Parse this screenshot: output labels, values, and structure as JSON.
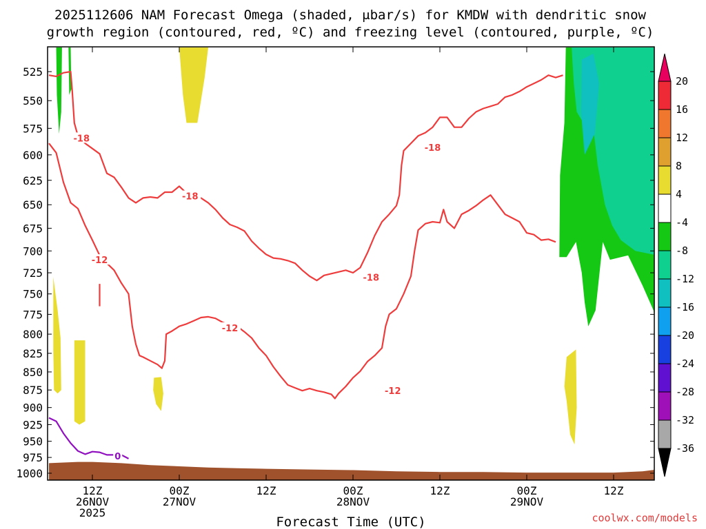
{
  "chart_data": {
    "type": "heatmap",
    "title": [
      "2025112606 NAM Forecast Omega (shaded, μbar/s) for KMDW with dendritic snow",
      "growth region (contoured, red, ºC) and freezing level (contoured, purple, ºC)"
    ],
    "xlabel": "Forecast Time (UTC)",
    "x_ticks": [
      {
        "hour": 6,
        "lines": [
          "12Z",
          "26NOV",
          "2025"
        ]
      },
      {
        "hour": 18,
        "lines": [
          "00Z",
          "27NOV"
        ]
      },
      {
        "hour": 30,
        "lines": [
          "12Z"
        ]
      },
      {
        "hour": 42,
        "lines": [
          "00Z",
          "28NOV"
        ]
      },
      {
        "hour": 54,
        "lines": [
          "12Z"
        ]
      },
      {
        "hour": 66,
        "lines": [
          "00Z",
          "29NOV"
        ]
      },
      {
        "hour": 78,
        "lines": [
          "12Z"
        ]
      }
    ],
    "xlim": [
      0,
      84
    ],
    "ylabel": "",
    "y_ticks": [
      "525",
      "550",
      "575",
      "600",
      "625",
      "650",
      "675",
      "700",
      "725",
      "750",
      "775",
      "800",
      "825",
      "850",
      "875",
      "900",
      "925",
      "950",
      "975",
      "1000"
    ],
    "ylim": [
      500,
      1015
    ],
    "y_scale": "log",
    "colorbar": {
      "labels": [
        "20",
        "16",
        "12",
        "8",
        "4",
        "-4",
        "-8",
        "-12",
        "-16",
        "-20",
        "-24",
        "-28",
        "-32",
        "-36"
      ],
      "colors": [
        "#e8005e",
        "#ee2a36",
        "#f0782e",
        "#e0a030",
        "#e8dc30",
        "#ffffff",
        "#14c814",
        "#10d090",
        "#10c0c0",
        "#10a0f0",
        "#1840e0",
        "#6010d0",
        "#a010b8",
        "#a8a8a8",
        "#000000"
      ]
    },
    "series": [
      {
        "name": "-18",
        "color": "#ee3c3c",
        "style": "contour",
        "points": [
          [
            0,
            528
          ],
          [
            1,
            529
          ],
          [
            2,
            526
          ],
          [
            3,
            525
          ],
          [
            3.2,
            540
          ],
          [
            3.5,
            570
          ],
          [
            4,
            582
          ],
          [
            5,
            589
          ],
          [
            6,
            594
          ],
          [
            7,
            599
          ],
          [
            8,
            618
          ],
          [
            9,
            622
          ],
          [
            10,
            632
          ],
          [
            11,
            643
          ],
          [
            12,
            648
          ],
          [
            13,
            643
          ],
          [
            14,
            642
          ],
          [
            15,
            643
          ],
          [
            16,
            637
          ],
          [
            17,
            637
          ],
          [
            18,
            631
          ],
          [
            19,
            638
          ],
          [
            20,
            641
          ],
          [
            21,
            643
          ],
          [
            22,
            648
          ],
          [
            23,
            655
          ],
          [
            24,
            664
          ],
          [
            25,
            671
          ],
          [
            26,
            674
          ],
          [
            27,
            678
          ],
          [
            28,
            689
          ],
          [
            29,
            697
          ],
          [
            30,
            704
          ],
          [
            31,
            708
          ],
          [
            32,
            709
          ],
          [
            33,
            711
          ],
          [
            34,
            714
          ],
          [
            35,
            722
          ],
          [
            36,
            729
          ],
          [
            37,
            734
          ],
          [
            38,
            728
          ],
          [
            39,
            726
          ],
          [
            40,
            724
          ],
          [
            41,
            722
          ],
          [
            42,
            725
          ],
          [
            43,
            719
          ],
          [
            44,
            702
          ],
          [
            45,
            683
          ],
          [
            46,
            668
          ],
          [
            47,
            660
          ],
          [
            48,
            651
          ],
          [
            48.4,
            640
          ],
          [
            48.7,
            610
          ],
          [
            49,
            596
          ],
          [
            50,
            589
          ],
          [
            51,
            582
          ],
          [
            52,
            579
          ],
          [
            53,
            574
          ],
          [
            54,
            565
          ],
          [
            55,
            565
          ],
          [
            56,
            574
          ],
          [
            57,
            574
          ],
          [
            58,
            566
          ],
          [
            59,
            560
          ],
          [
            60,
            557
          ],
          [
            61,
            555
          ],
          [
            62,
            553
          ],
          [
            63,
            547
          ],
          [
            64,
            545
          ],
          [
            65,
            542
          ],
          [
            66,
            538
          ],
          [
            67,
            535
          ],
          [
            68,
            532
          ],
          [
            69,
            528
          ],
          [
            70,
            530
          ],
          [
            71,
            528
          ]
        ]
      },
      {
        "name": "-12",
        "color": "#ee3c3c",
        "style": "contour",
        "points": [
          [
            0,
            589
          ],
          [
            1,
            598
          ],
          [
            2,
            627
          ],
          [
            3,
            648
          ],
          [
            4,
            654
          ],
          [
            5,
            672
          ],
          [
            6,
            688
          ],
          [
            7,
            705
          ],
          [
            8,
            714
          ],
          [
            9,
            722
          ],
          [
            10,
            737
          ],
          [
            11,
            750
          ],
          [
            11.5,
            790
          ],
          [
            12,
            813
          ],
          [
            12.5,
            828
          ],
          [
            13,
            830
          ],
          [
            14,
            835
          ],
          [
            15,
            840
          ],
          [
            15.6,
            845
          ],
          [
            16,
            835
          ],
          [
            16.2,
            800
          ],
          [
            17,
            796
          ],
          [
            18,
            790
          ],
          [
            19,
            787
          ],
          [
            20,
            783
          ],
          [
            21,
            779
          ],
          [
            22,
            778
          ],
          [
            23,
            780
          ],
          [
            24,
            785
          ],
          [
            25,
            788
          ],
          [
            26,
            790
          ],
          [
            27,
            797
          ],
          [
            28,
            805
          ],
          [
            29,
            818
          ],
          [
            30,
            828
          ],
          [
            31,
            843
          ],
          [
            32,
            856
          ],
          [
            33,
            868
          ],
          [
            34,
            872
          ],
          [
            35,
            876
          ],
          [
            36,
            873
          ],
          [
            37,
            876
          ],
          [
            38,
            878
          ],
          [
            39,
            881
          ],
          [
            39.5,
            887
          ],
          [
            40,
            880
          ],
          [
            41,
            870
          ],
          [
            42,
            858
          ],
          [
            43,
            849
          ],
          [
            44,
            836
          ],
          [
            45,
            828
          ],
          [
            46,
            818
          ],
          [
            46.5,
            790
          ],
          [
            47,
            775
          ],
          [
            48,
            768
          ],
          [
            49,
            750
          ],
          [
            50,
            729
          ],
          [
            50.5,
            700
          ],
          [
            51,
            677
          ],
          [
            52,
            670
          ],
          [
            53,
            668
          ],
          [
            54,
            669
          ],
          [
            54.5,
            655
          ],
          [
            55,
            668
          ],
          [
            56,
            675
          ],
          [
            57,
            660
          ],
          [
            58,
            656
          ],
          [
            59,
            651
          ],
          [
            60,
            645
          ],
          [
            61,
            640
          ],
          [
            62,
            650
          ],
          [
            63,
            660
          ],
          [
            64,
            664
          ],
          [
            65,
            668
          ],
          [
            66,
            680
          ],
          [
            67,
            682
          ],
          [
            68,
            688
          ],
          [
            69,
            687
          ],
          [
            70,
            690
          ]
        ]
      },
      {
        "name": "0",
        "color": "#9010c0",
        "style": "contour",
        "points": [
          [
            0,
            915
          ],
          [
            1,
            920
          ],
          [
            2,
            938
          ],
          [
            3,
            953
          ],
          [
            4,
            965
          ],
          [
            5,
            970
          ],
          [
            6,
            966
          ],
          [
            7,
            967
          ],
          [
            8,
            971
          ],
          [
            9,
            971
          ],
          [
            10,
            971
          ],
          [
            11,
            977
          ]
        ]
      }
    ],
    "contour_labels": [
      {
        "text": "-18",
        "hour": 4.5,
        "p": 584,
        "color": "#ee3c3c"
      },
      {
        "text": "-18",
        "hour": 19.5,
        "p": 641,
        "color": "#ee3c3c"
      },
      {
        "text": "-18",
        "hour": 44.5,
        "p": 730,
        "color": "#ee3c3c"
      },
      {
        "text": "-18",
        "hour": 53.0,
        "p": 593,
        "color": "#ee3c3c"
      },
      {
        "text": "-12",
        "hour": 7.0,
        "p": 710,
        "color": "#ee3c3c"
      },
      {
        "text": "-12",
        "hour": 25.0,
        "p": 792,
        "color": "#ee3c3c"
      },
      {
        "text": "-12",
        "hour": 47.5,
        "p": 876,
        "color": "#ee3c3c"
      },
      {
        "text": "0",
        "hour": 9.5,
        "p": 973,
        "color": "#9010c0"
      }
    ],
    "shaded_regions": [
      {
        "value": 4,
        "color": "#e8dc30",
        "points": [
          [
            18,
            505
          ],
          [
            22,
            505
          ],
          [
            21.5,
            530
          ],
          [
            20.5,
            570
          ],
          [
            19,
            570
          ],
          [
            18.5,
            545
          ]
        ]
      },
      {
        "value": 4,
        "color": "#e8dc30",
        "points": [
          [
            0.6,
            730
          ],
          [
            1.2,
            770
          ],
          [
            1.6,
            805
          ],
          [
            1.7,
            875
          ],
          [
            1.2,
            880
          ],
          [
            0.7,
            875
          ],
          [
            0.6,
            820
          ]
        ]
      },
      {
        "value": 4,
        "color": "#e8dc30",
        "points": [
          [
            3.5,
            808
          ],
          [
            5.0,
            808
          ],
          [
            5.0,
            920
          ],
          [
            4.2,
            925
          ],
          [
            3.5,
            920
          ]
        ]
      },
      {
        "value": 4,
        "color": "#e8dc30",
        "points": [
          [
            14.5,
            858
          ],
          [
            15.5,
            857
          ],
          [
            15.8,
            880
          ],
          [
            15.5,
            905
          ],
          [
            14.8,
            895
          ],
          [
            14.4,
            875
          ]
        ]
      },
      {
        "value": 4,
        "color": "#e8dc30",
        "points": [
          [
            71.5,
            830
          ],
          [
            72.8,
            820
          ],
          [
            72.9,
            900
          ],
          [
            72.6,
            955
          ],
          [
            72.0,
            940
          ],
          [
            71.5,
            890
          ],
          [
            71.2,
            870
          ]
        ]
      },
      {
        "value": -4,
        "color": "#14c814",
        "points": [
          [
            1.0,
            505
          ],
          [
            1.8,
            505
          ],
          [
            1.7,
            560
          ],
          [
            1.4,
            580
          ],
          [
            1.1,
            545
          ]
        ]
      },
      {
        "value": -4,
        "color": "#14c814",
        "points": [
          [
            2.7,
            505
          ],
          [
            3.0,
            505
          ],
          [
            3.1,
            540
          ],
          [
            2.8,
            545
          ]
        ]
      },
      {
        "value": -4,
        "color": "#14c814",
        "points": [
          [
            71.4,
            505
          ],
          [
            84,
            505
          ],
          [
            84,
            800
          ],
          [
            83.5,
            770
          ],
          [
            82,
            740
          ],
          [
            80,
            705
          ],
          [
            77.5,
            710
          ],
          [
            76.5,
            690
          ],
          [
            75.5,
            770
          ],
          [
            74.5,
            790
          ],
          [
            74,
            760
          ],
          [
            73.6,
            725
          ],
          [
            72.8,
            690
          ],
          [
            71.5,
            707
          ],
          [
            70.5,
            707
          ],
          [
            70.6,
            620
          ],
          [
            71.2,
            570
          ]
        ]
      },
      {
        "value": -8,
        "color": "#10d090",
        "points": [
          [
            72.2,
            505
          ],
          [
            84,
            505
          ],
          [
            84,
            705
          ],
          [
            81,
            700
          ],
          [
            79,
            688
          ],
          [
            77.8,
            672
          ],
          [
            76.8,
            650
          ],
          [
            75.8,
            610
          ],
          [
            75.2,
            575
          ],
          [
            74.0,
            572
          ],
          [
            72.9,
            560
          ],
          [
            72.5,
            535
          ]
        ]
      },
      {
        "value": -12,
        "color": "#10c0c0",
        "points": [
          [
            73.6,
            515
          ],
          [
            75.2,
            510
          ],
          [
            76.0,
            535
          ],
          [
            75.4,
            580
          ],
          [
            74.0,
            600
          ],
          [
            73.5,
            560
          ]
        ]
      }
    ]
  }
}
